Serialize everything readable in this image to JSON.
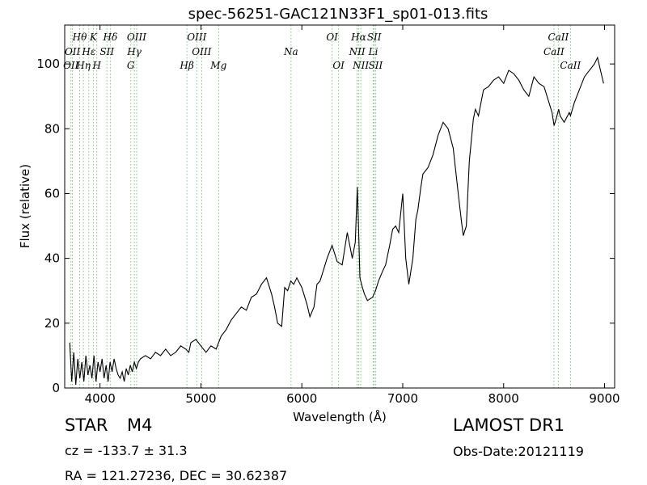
{
  "chart_data": {
    "type": "line",
    "title": "spec-56251-GAC121N33F1_sp01-013.fits",
    "xlabel": "Wavelength (Å)",
    "ylabel": "Flux (relative)",
    "xlim": [
      3650,
      9100
    ],
    "ylim": [
      0,
      112
    ],
    "xticks": [
      4000,
      5000,
      6000,
      7000,
      8000,
      9000
    ],
    "yticks": [
      0,
      20,
      40,
      60,
      80,
      100
    ],
    "grid": false,
    "line_color": "#000000",
    "marker_line_color": "#7fc47f",
    "series": [
      {
        "x": [
          3700,
          3720,
          3740,
          3760,
          3780,
          3800,
          3820,
          3840,
          3860,
          3880,
          3900,
          3920,
          3940,
          3960,
          3980,
          4000,
          4020,
          4040,
          4060,
          4080,
          4100,
          4120,
          4140,
          4160,
          4180,
          4200,
          4220,
          4240,
          4260,
          4280,
          4300,
          4320,
          4340,
          4360,
          4380,
          4400,
          4450,
          4500,
          4550,
          4600,
          4650,
          4700,
          4750,
          4800,
          4850,
          4880,
          4900,
          4950,
          5000,
          5050,
          5100,
          5150,
          5200,
          5250,
          5300,
          5350,
          5400,
          5450,
          5500,
          5550,
          5600,
          5650,
          5700,
          5730,
          5760,
          5800,
          5830,
          5860,
          5890,
          5920,
          5950,
          6000,
          6050,
          6080,
          6120,
          6150,
          6180,
          6220,
          6250,
          6300,
          6350,
          6400,
          6450,
          6500,
          6530,
          6550,
          6563,
          6575,
          6600,
          6620,
          6650,
          6700,
          6730,
          6760,
          6800,
          6830,
          6870,
          6900,
          6930,
          6960,
          7000,
          7030,
          7060,
          7100,
          7130,
          7150,
          7180,
          7200,
          7250,
          7300,
          7350,
          7400,
          7450,
          7500,
          7550,
          7580,
          7600,
          7630,
          7660,
          7700,
          7720,
          7750,
          7800,
          7850,
          7900,
          7950,
          8000,
          8050,
          8100,
          8150,
          8200,
          8250,
          8300,
          8350,
          8400,
          8450,
          8480,
          8500,
          8520,
          8545,
          8560,
          8600,
          8650,
          8662,
          8700,
          8750,
          8800,
          8850,
          8900,
          8930,
          8960,
          8990
        ],
        "y": [
          14,
          2,
          11,
          1,
          9,
          3,
          8,
          2,
          10,
          4,
          7,
          3,
          10,
          2,
          8,
          5,
          9,
          3,
          7,
          2,
          8,
          5,
          9,
          6,
          4,
          3,
          5,
          2,
          6,
          4,
          7,
          5,
          8,
          6,
          8,
          9,
          10,
          9,
          11,
          10,
          12,
          10,
          11,
          13,
          12,
          11,
          14,
          15,
          13,
          11,
          13,
          12,
          16,
          18,
          21,
          23,
          25,
          24,
          28,
          29,
          32,
          34,
          29,
          25,
          20,
          19,
          31,
          30,
          33,
          32,
          34,
          31,
          26,
          22,
          25,
          32,
          33,
          37,
          40,
          44,
          39,
          38,
          48,
          40,
          45,
          62,
          48,
          34,
          31,
          29,
          27,
          28,
          30,
          33,
          36,
          38,
          44,
          49,
          50,
          48,
          60,
          40,
          32,
          40,
          52,
          55,
          62,
          66,
          68,
          72,
          78,
          82,
          80,
          74,
          60,
          52,
          47,
          50,
          70,
          83,
          86,
          84,
          92,
          93,
          95,
          96,
          94,
          98,
          97,
          95,
          92,
          90,
          96,
          94,
          93,
          88,
          85,
          81,
          83,
          86,
          84,
          82,
          85,
          84,
          88,
          92,
          96,
          98,
          100,
          102,
          98,
          94
        ]
      }
    ],
    "line_markers": [
      {
        "label": "Hθ",
        "x": 3798,
        "row": 1
      },
      {
        "label": "K",
        "x": 3934,
        "row": 1
      },
      {
        "label": "Hδ",
        "x": 4102,
        "row": 1
      },
      {
        "label": "OIII",
        "x": 4363,
        "row": 1
      },
      {
        "label": "OIII",
        "x": 4959,
        "row": 1
      },
      {
        "label": "OI",
        "x": 6300,
        "row": 1
      },
      {
        "label": "Hα",
        "x": 6563,
        "row": 1
      },
      {
        "label": "SII",
        "x": 6717,
        "row": 1
      },
      {
        "label": "CaII",
        "x": 8542,
        "row": 1
      },
      {
        "label": "OII",
        "x": 3727,
        "row": 2
      },
      {
        "label": "Hε",
        "x": 3889,
        "row": 2
      },
      {
        "label": "SII",
        "x": 4069,
        "row": 2
      },
      {
        "label": "Hγ",
        "x": 4340,
        "row": 2
      },
      {
        "label": "OIII",
        "x": 5007,
        "row": 2
      },
      {
        "label": "Na",
        "x": 5893,
        "row": 2
      },
      {
        "label": "NII",
        "x": 6548,
        "row": 2
      },
      {
        "label": "Li",
        "x": 6708,
        "row": 2
      },
      {
        "label": "CaII",
        "x": 8498,
        "row": 2
      },
      {
        "label": "OII",
        "x": 3712,
        "row": 3
      },
      {
        "label": "Hη",
        "x": 3835,
        "row": 3
      },
      {
        "label": "H",
        "x": 3968,
        "row": 3
      },
      {
        "label": "G",
        "x": 4305,
        "row": 3
      },
      {
        "label": "Hβ",
        "x": 4861,
        "row": 3
      },
      {
        "label": "Mg",
        "x": 5175,
        "row": 3
      },
      {
        "label": "OI",
        "x": 6364,
        "row": 3
      },
      {
        "label": "NII",
        "x": 6584,
        "row": 3
      },
      {
        "label": "SII",
        "x": 6731,
        "row": 3
      },
      {
        "label": "CaII",
        "x": 8662,
        "row": 3
      }
    ]
  },
  "info": {
    "object_type": "STAR",
    "subclass": "M4",
    "survey": "LAMOST DR1",
    "cz": "cz = -133.7 ± 31.3",
    "obs_date": "Obs-Date:20121119",
    "coords": "RA = 121.27236, DEC = 30.62387"
  }
}
